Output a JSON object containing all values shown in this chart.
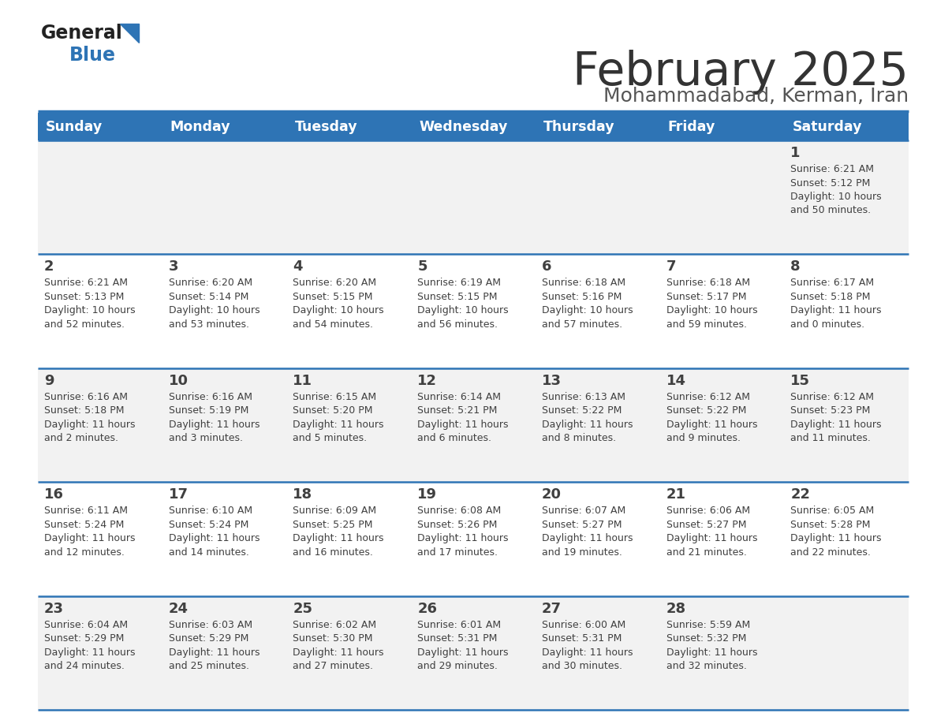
{
  "title": "February 2025",
  "subtitle": "Mohammadabad, Kerman, Iran",
  "header_bg": "#2E74B5",
  "header_text_color": "#FFFFFF",
  "day_headers": [
    "Sunday",
    "Monday",
    "Tuesday",
    "Wednesday",
    "Thursday",
    "Friday",
    "Saturday"
  ],
  "row_bg_even": "#F2F2F2",
  "row_bg_odd": "#FFFFFF",
  "cell_text_color": "#404040",
  "title_color": "#333333",
  "subtitle_color": "#555555",
  "logo_general_color": "#222222",
  "logo_blue_color": "#2E74B5",
  "divider_color": "#2E74B5",
  "calendar_data": [
    [
      null,
      null,
      null,
      null,
      null,
      null,
      {
        "day": "1",
        "sunrise": "6:21 AM",
        "sunset": "5:12 PM",
        "daylight_h": "10 hours",
        "daylight_m": "and 50 minutes."
      }
    ],
    [
      {
        "day": "2",
        "sunrise": "6:21 AM",
        "sunset": "5:13 PM",
        "daylight_h": "10 hours",
        "daylight_m": "and 52 minutes."
      },
      {
        "day": "3",
        "sunrise": "6:20 AM",
        "sunset": "5:14 PM",
        "daylight_h": "10 hours",
        "daylight_m": "and 53 minutes."
      },
      {
        "day": "4",
        "sunrise": "6:20 AM",
        "sunset": "5:15 PM",
        "daylight_h": "10 hours",
        "daylight_m": "and 54 minutes."
      },
      {
        "day": "5",
        "sunrise": "6:19 AM",
        "sunset": "5:15 PM",
        "daylight_h": "10 hours",
        "daylight_m": "and 56 minutes."
      },
      {
        "day": "6",
        "sunrise": "6:18 AM",
        "sunset": "5:16 PM",
        "daylight_h": "10 hours",
        "daylight_m": "and 57 minutes."
      },
      {
        "day": "7",
        "sunrise": "6:18 AM",
        "sunset": "5:17 PM",
        "daylight_h": "10 hours",
        "daylight_m": "and 59 minutes."
      },
      {
        "day": "8",
        "sunrise": "6:17 AM",
        "sunset": "5:18 PM",
        "daylight_h": "11 hours",
        "daylight_m": "and 0 minutes."
      }
    ],
    [
      {
        "day": "9",
        "sunrise": "6:16 AM",
        "sunset": "5:18 PM",
        "daylight_h": "11 hours",
        "daylight_m": "and 2 minutes."
      },
      {
        "day": "10",
        "sunrise": "6:16 AM",
        "sunset": "5:19 PM",
        "daylight_h": "11 hours",
        "daylight_m": "and 3 minutes."
      },
      {
        "day": "11",
        "sunrise": "6:15 AM",
        "sunset": "5:20 PM",
        "daylight_h": "11 hours",
        "daylight_m": "and 5 minutes."
      },
      {
        "day": "12",
        "sunrise": "6:14 AM",
        "sunset": "5:21 PM",
        "daylight_h": "11 hours",
        "daylight_m": "and 6 minutes."
      },
      {
        "day": "13",
        "sunrise": "6:13 AM",
        "sunset": "5:22 PM",
        "daylight_h": "11 hours",
        "daylight_m": "and 8 minutes."
      },
      {
        "day": "14",
        "sunrise": "6:12 AM",
        "sunset": "5:22 PM",
        "daylight_h": "11 hours",
        "daylight_m": "and 9 minutes."
      },
      {
        "day": "15",
        "sunrise": "6:12 AM",
        "sunset": "5:23 PM",
        "daylight_h": "11 hours",
        "daylight_m": "and 11 minutes."
      }
    ],
    [
      {
        "day": "16",
        "sunrise": "6:11 AM",
        "sunset": "5:24 PM",
        "daylight_h": "11 hours",
        "daylight_m": "and 12 minutes."
      },
      {
        "day": "17",
        "sunrise": "6:10 AM",
        "sunset": "5:24 PM",
        "daylight_h": "11 hours",
        "daylight_m": "and 14 minutes."
      },
      {
        "day": "18",
        "sunrise": "6:09 AM",
        "sunset": "5:25 PM",
        "daylight_h": "11 hours",
        "daylight_m": "and 16 minutes."
      },
      {
        "day": "19",
        "sunrise": "6:08 AM",
        "sunset": "5:26 PM",
        "daylight_h": "11 hours",
        "daylight_m": "and 17 minutes."
      },
      {
        "day": "20",
        "sunrise": "6:07 AM",
        "sunset": "5:27 PM",
        "daylight_h": "11 hours",
        "daylight_m": "and 19 minutes."
      },
      {
        "day": "21",
        "sunrise": "6:06 AM",
        "sunset": "5:27 PM",
        "daylight_h": "11 hours",
        "daylight_m": "and 21 minutes."
      },
      {
        "day": "22",
        "sunrise": "6:05 AM",
        "sunset": "5:28 PM",
        "daylight_h": "11 hours",
        "daylight_m": "and 22 minutes."
      }
    ],
    [
      {
        "day": "23",
        "sunrise": "6:04 AM",
        "sunset": "5:29 PM",
        "daylight_h": "11 hours",
        "daylight_m": "and 24 minutes."
      },
      {
        "day": "24",
        "sunrise": "6:03 AM",
        "sunset": "5:29 PM",
        "daylight_h": "11 hours",
        "daylight_m": "and 25 minutes."
      },
      {
        "day": "25",
        "sunrise": "6:02 AM",
        "sunset": "5:30 PM",
        "daylight_h": "11 hours",
        "daylight_m": "and 27 minutes."
      },
      {
        "day": "26",
        "sunrise": "6:01 AM",
        "sunset": "5:31 PM",
        "daylight_h": "11 hours",
        "daylight_m": "and 29 minutes."
      },
      {
        "day": "27",
        "sunrise": "6:00 AM",
        "sunset": "5:31 PM",
        "daylight_h": "11 hours",
        "daylight_m": "and 30 minutes."
      },
      {
        "day": "28",
        "sunrise": "5:59 AM",
        "sunset": "5:32 PM",
        "daylight_h": "11 hours",
        "daylight_m": "and 32 minutes."
      },
      null
    ]
  ]
}
